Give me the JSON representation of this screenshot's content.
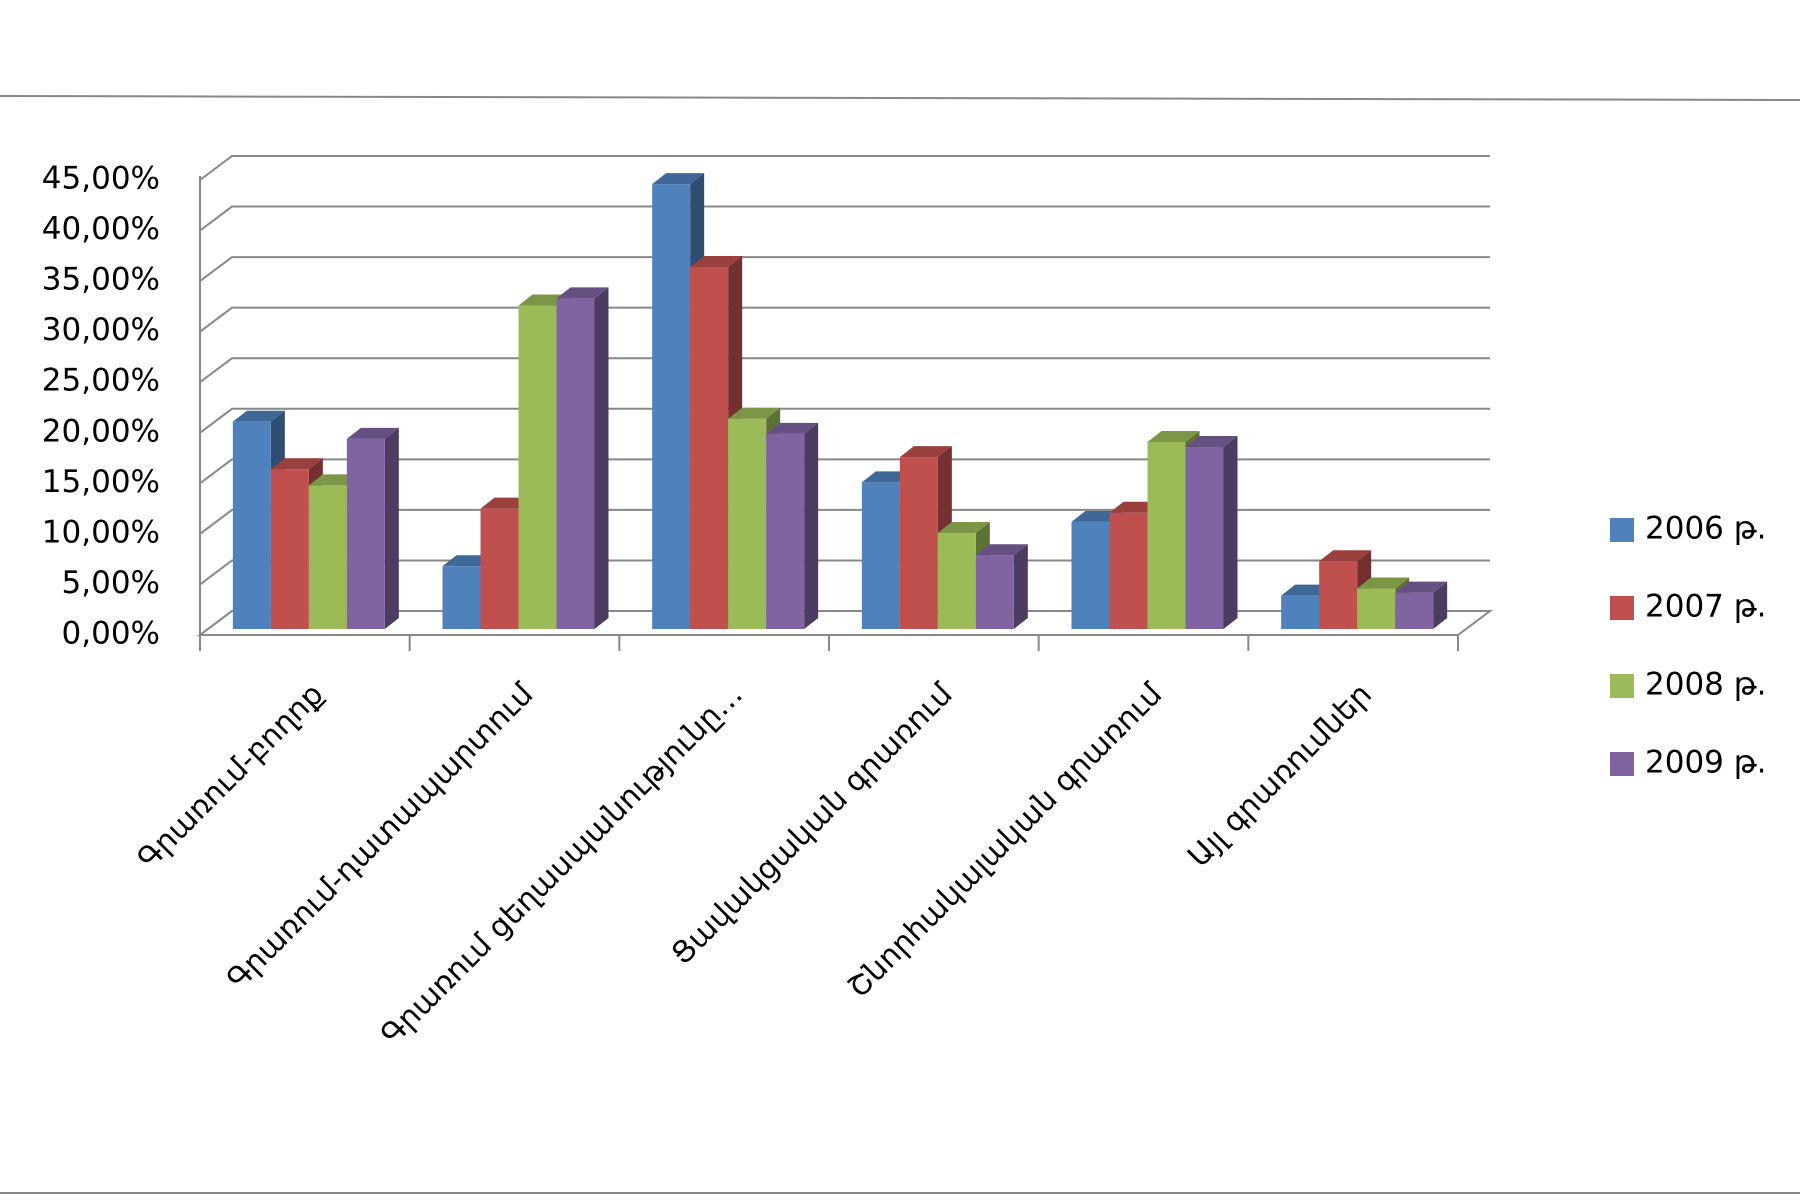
{
  "chart_data": {
    "type": "bar3d",
    "categories": [
      "Գրառում-բողոք",
      "Գրառում-դատապարտում",
      "Գրառում ցեղասպանությունը…",
      "Ցավակցական գրառում",
      "Շնորհակալական գրառում",
      "Այլ գրառումներ"
    ],
    "series": [
      {
        "name": "2006 թ.",
        "color": "#4f81bd",
        "values": [
          20.5,
          6.2,
          44.0,
          14.5,
          10.6,
          3.3
        ]
      },
      {
        "name": "2007 թ.",
        "color": "#c0504d",
        "values": [
          15.8,
          11.9,
          35.8,
          17.0,
          11.5,
          6.7
        ]
      },
      {
        "name": "2008 թ.",
        "color": "#9bbb59",
        "values": [
          14.2,
          32.0,
          20.8,
          9.5,
          18.5,
          4.0
        ]
      },
      {
        "name": "2009 թ.",
        "color": "#8064a2",
        "values": [
          18.8,
          32.7,
          19.3,
          7.3,
          18.0,
          3.6
        ]
      }
    ],
    "ylim": [
      0,
      45
    ],
    "yticks": [
      {
        "value": 0,
        "label": "0,00%"
      },
      {
        "value": 5,
        "label": "5,00%"
      },
      {
        "value": 10,
        "label": "10,00%"
      },
      {
        "value": 15,
        "label": "15,00%"
      },
      {
        "value": 20,
        "label": "20,00%"
      },
      {
        "value": 25,
        "label": "25,00%"
      },
      {
        "value": 30,
        "label": "30,00%"
      },
      {
        "value": 35,
        "label": "35,00%"
      },
      {
        "value": 40,
        "label": "40,00%"
      },
      {
        "value": 45,
        "label": "45,00%"
      }
    ],
    "grid": true,
    "legend": "right"
  }
}
